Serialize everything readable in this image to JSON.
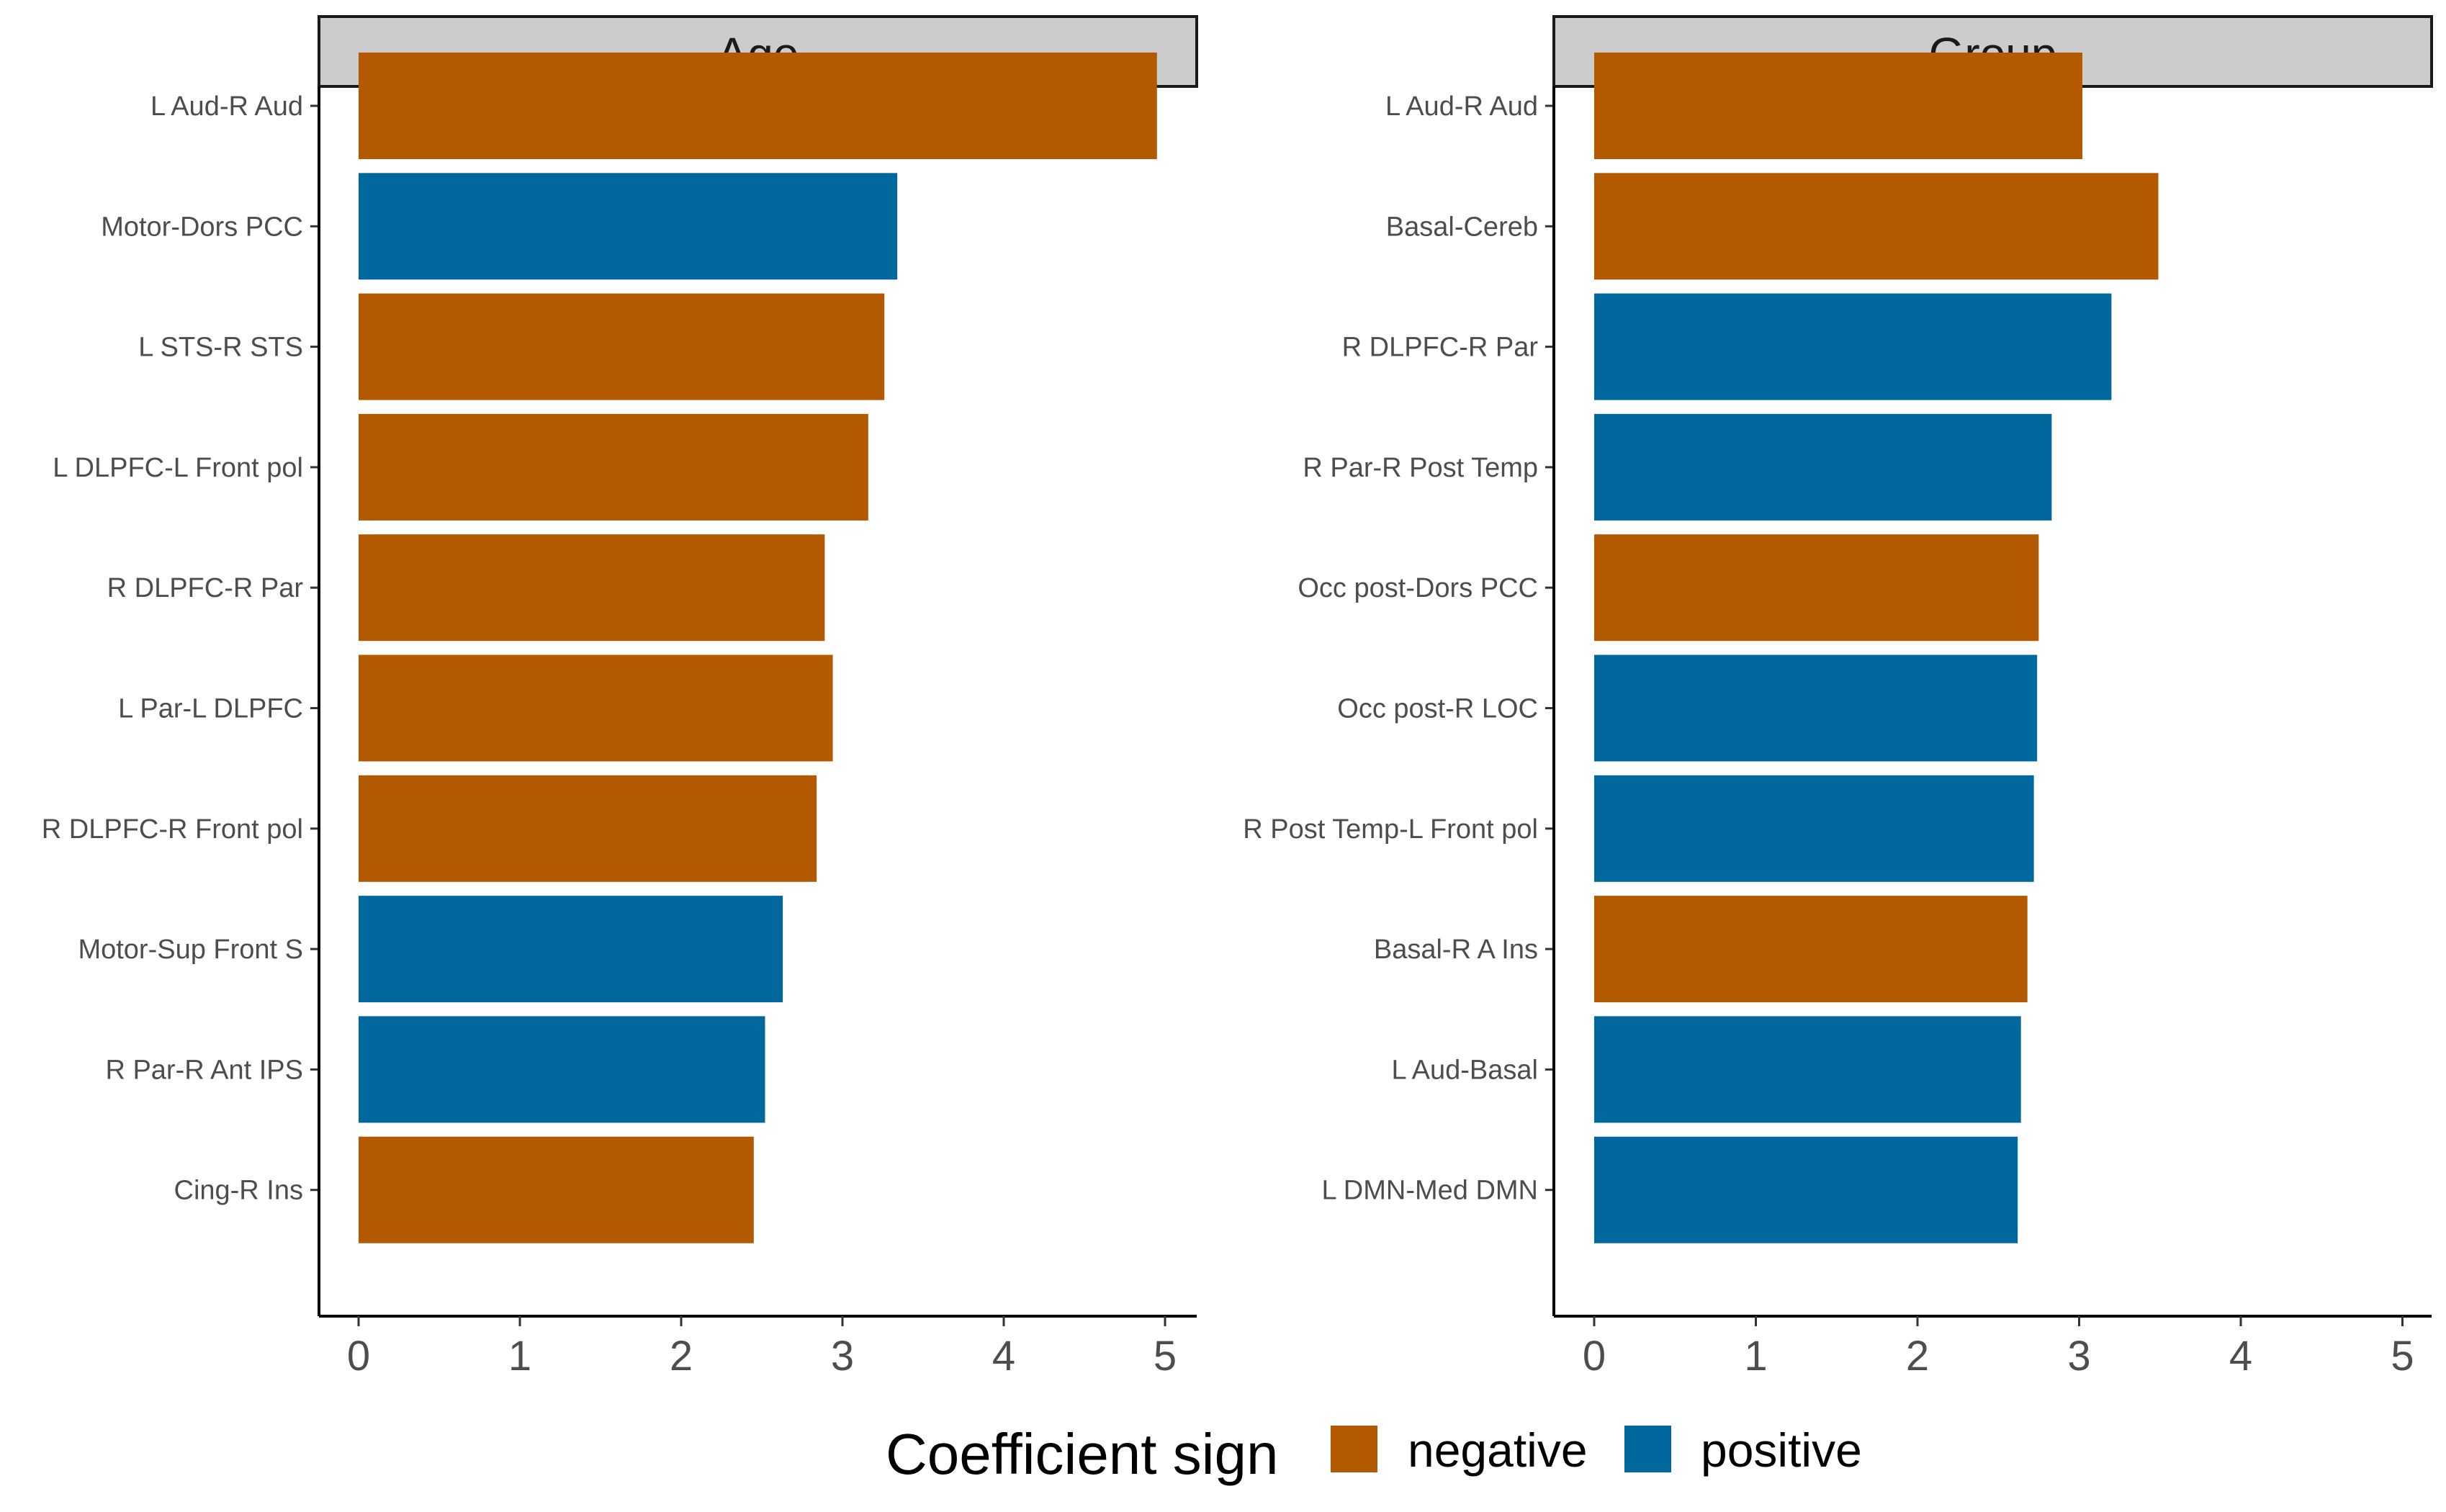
{
  "legend": {
    "title": "Coefficient sign",
    "items": [
      {
        "label": "negative",
        "color": "#b35900"
      },
      {
        "label": "positive",
        "color": "#00689c"
      }
    ]
  },
  "chart_data": [
    {
      "type": "bar",
      "orientation": "horizontal",
      "title": "Age",
      "xlim": [
        0,
        5
      ],
      "ticks": [
        0,
        1,
        2,
        3,
        4,
        5
      ],
      "grid": false,
      "categories": [
        "L Aud-R Aud",
        "Motor-Dors PCC",
        "L STS-R STS",
        "L DLPFC-L Front pol",
        "R DLPFC-R Par",
        "L Par-L DLPFC",
        "R DLPFC-R Front pol",
        "Motor-Sup Front S",
        "R Par-R Ant IPS",
        "Cing-R Ins"
      ],
      "values": [
        4.95,
        3.34,
        3.26,
        3.16,
        2.89,
        2.94,
        2.84,
        2.63,
        2.52,
        2.45
      ],
      "signs": [
        "negative",
        "positive",
        "negative",
        "negative",
        "negative",
        "negative",
        "negative",
        "positive",
        "positive",
        "negative"
      ]
    },
    {
      "type": "bar",
      "orientation": "horizontal",
      "title": "Group",
      "xlim": [
        0,
        5
      ],
      "ticks": [
        0,
        1,
        2,
        3,
        4,
        5
      ],
      "grid": false,
      "categories": [
        "L Aud-R Aud",
        "Basal-Cereb",
        "R DLPFC-R Par",
        "R Par-R Post Temp",
        "Occ post-Dors PCC",
        "Occ post-R LOC",
        "R Post Temp-L Front pol",
        "Basal-R A Ins",
        "L Aud-Basal",
        "L DMN-Med DMN"
      ],
      "values": [
        3.02,
        3.49,
        3.2,
        2.83,
        2.75,
        2.74,
        2.72,
        2.68,
        2.64,
        2.62
      ],
      "signs": [
        "negative",
        "negative",
        "positive",
        "positive",
        "negative",
        "positive",
        "positive",
        "negative",
        "positive",
        "positive"
      ]
    }
  ]
}
